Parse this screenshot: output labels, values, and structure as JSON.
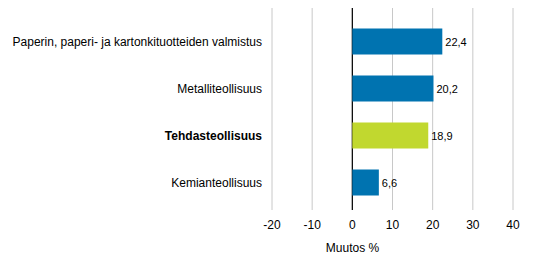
{
  "chart_data": {
    "type": "bar",
    "orientation": "horizontal",
    "categories": [
      "Paperin, paperi- ja kartonkituotteiden valmistus",
      "Metalliteollisuus",
      "Tehdasteollisuus",
      "Kemianteollisuus"
    ],
    "values": [
      22.4,
      20.2,
      18.9,
      6.6
    ],
    "value_labels": [
      "22,4",
      "20,2",
      "18,9",
      "6,6"
    ],
    "colors": [
      "#0073b0",
      "#0073b0",
      "#c1d82f",
      "#0073b0"
    ],
    "x_label": "Muutos %",
    "xlim": [
      -20,
      40
    ],
    "xticks": [
      -20,
      -10,
      0,
      10,
      20,
      30,
      40
    ],
    "grid": true,
    "data_labels": true
  }
}
